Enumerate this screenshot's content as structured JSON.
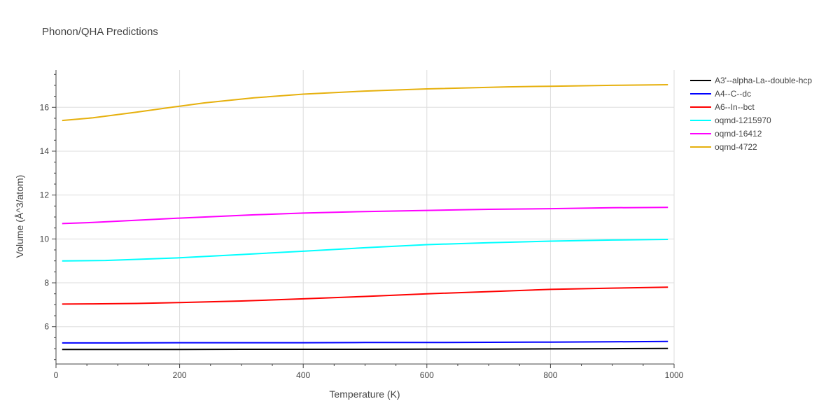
{
  "chart_data": {
    "type": "line",
    "title": "Phonon/QHA Predictions",
    "xlabel": "Temperature (K)",
    "ylabel": "Volume (Å^3/atom)",
    "xlim": [
      0,
      1000
    ],
    "ylim": [
      4.3,
      17.7
    ],
    "x_ticks": [
      0,
      200,
      400,
      600,
      800,
      1000
    ],
    "y_ticks": [
      6,
      8,
      10,
      12,
      14,
      16
    ],
    "grid": true,
    "legend_position": "right",
    "series": [
      {
        "name": "A3'--alpha-La--double-hcp",
        "color": "#000000",
        "x": [
          10,
          100,
          200,
          300,
          400,
          500,
          600,
          700,
          800,
          900,
          990
        ],
        "y": [
          4.96,
          4.96,
          4.96,
          4.97,
          4.97,
          4.97,
          4.98,
          4.98,
          4.99,
          5.0,
          5.01
        ]
      },
      {
        "name": "A4--C--dc",
        "color": "#0000ff",
        "x": [
          10,
          100,
          200,
          300,
          400,
          500,
          600,
          700,
          800,
          900,
          990
        ],
        "y": [
          5.26,
          5.26,
          5.27,
          5.27,
          5.27,
          5.28,
          5.28,
          5.29,
          5.3,
          5.31,
          5.33
        ]
      },
      {
        "name": "A6--In--bct",
        "color": "#ff0000",
        "x": [
          10,
          60,
          130,
          200,
          300,
          400,
          500,
          600,
          700,
          800,
          900,
          990
        ],
        "y": [
          7.03,
          7.04,
          7.06,
          7.1,
          7.17,
          7.27,
          7.38,
          7.5,
          7.6,
          7.7,
          7.76,
          7.8
        ]
      },
      {
        "name": "oqmd-1215970",
        "color": "#00ffff",
        "x": [
          10,
          80,
          200,
          300,
          400,
          500,
          600,
          700,
          800,
          900,
          990
        ],
        "y": [
          9.0,
          9.02,
          9.14,
          9.29,
          9.44,
          9.6,
          9.74,
          9.83,
          9.9,
          9.95,
          9.98
        ]
      },
      {
        "name": "oqmd-16412",
        "color": "#ff00ff",
        "x": [
          10,
          60,
          200,
          320,
          400,
          500,
          600,
          700,
          800,
          900,
          990
        ],
        "y": [
          10.7,
          10.75,
          10.95,
          11.1,
          11.18,
          11.25,
          11.3,
          11.35,
          11.38,
          11.42,
          11.44
        ]
      },
      {
        "name": "oqmd-4722",
        "color": "#e6b00d",
        "x": [
          10,
          60,
          130,
          200,
          240,
          320,
          400,
          500,
          600,
          730,
          800,
          900,
          990
        ],
        "y": [
          15.4,
          15.52,
          15.78,
          16.05,
          16.2,
          16.43,
          16.6,
          16.74,
          16.84,
          16.93,
          16.96,
          17.0,
          17.03
        ]
      }
    ]
  }
}
